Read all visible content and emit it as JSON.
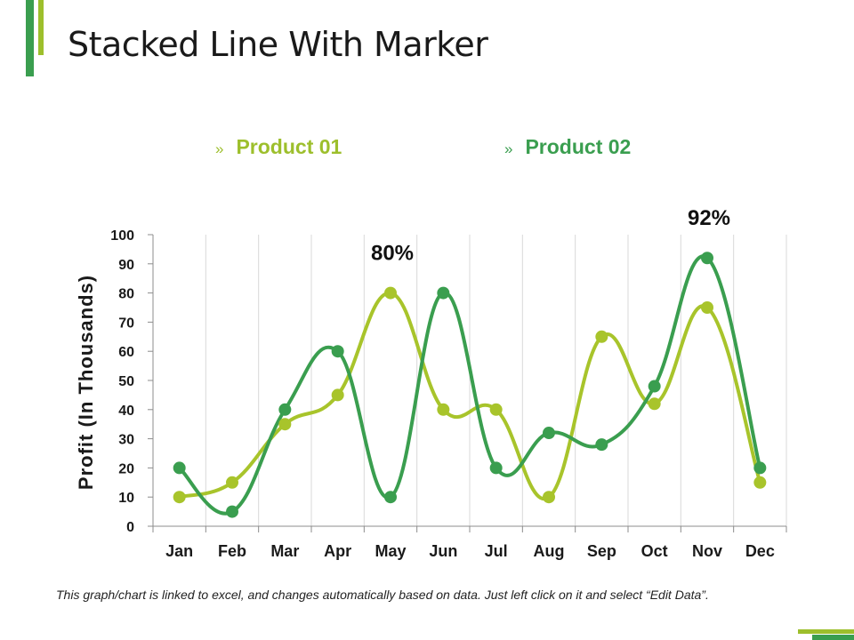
{
  "title": "Stacked Line With Marker",
  "colors": {
    "accent_light": "#9dbf2c",
    "accent_dark": "#3a9e4f",
    "text": "#1a1a1a",
    "grid": "#d9d9d9"
  },
  "legend": [
    {
      "marker": "»",
      "label": "Product 01",
      "color": "#9dbf2c"
    },
    {
      "marker": "»",
      "label": "Product 02",
      "color": "#3a9e4f"
    }
  ],
  "chart_data": {
    "type": "line",
    "title": "",
    "xlabel": "",
    "ylabel": "Profit (In Thousands)",
    "ylim": [
      0,
      100
    ],
    "yticks": [
      0,
      10,
      20,
      30,
      40,
      50,
      60,
      70,
      80,
      90,
      100
    ],
    "grid": "vertical",
    "smooth": true,
    "markers": true,
    "legend_position": "top",
    "categories": [
      "Jan",
      "Feb",
      "Mar",
      "Apr",
      "May",
      "Jun",
      "Jul",
      "Aug",
      "Sep",
      "Oct",
      "Nov",
      "Dec"
    ],
    "series": [
      {
        "name": "Product 01",
        "color": "#a8c42b",
        "values": [
          10,
          15,
          35,
          45,
          80,
          40,
          40,
          10,
          65,
          42,
          75,
          15
        ]
      },
      {
        "name": "Product 02",
        "color": "#3a9e4f",
        "values": [
          20,
          5,
          40,
          60,
          10,
          80,
          20,
          32,
          28,
          48,
          92,
          20
        ]
      }
    ],
    "annotations": [
      {
        "text": "80%",
        "series": 0,
        "category": "May"
      },
      {
        "text": "92%",
        "series": 1,
        "category": "Nov"
      }
    ]
  },
  "footnote": "This graph/chart is linked to excel, and changes automatically based on data. Just left click on it and select “Edit Data”."
}
